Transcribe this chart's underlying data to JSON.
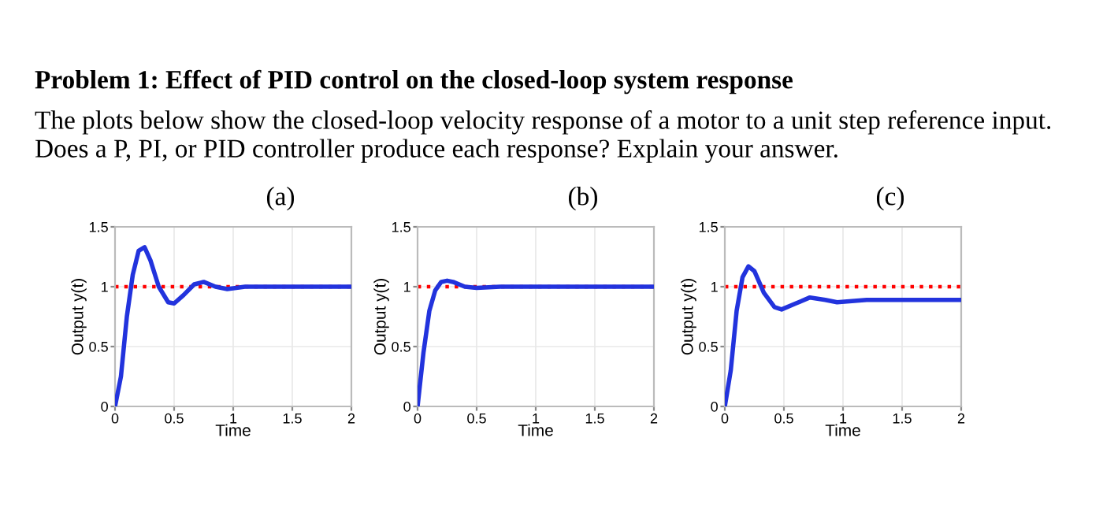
{
  "chart_data": [
    {
      "type": "line",
      "title": "(a)",
      "xlabel": "Time",
      "ylabel": "Output y(t)",
      "annotations": [
        "Problem 1: Effect of PID control on the closed-loop system response",
        "The plots below show the closed-loop velocity response of a motor to a unit step reference input. Does a P, PI, or PID controller produce each response? Explain your answer."
      ],
      "series": [
        {
          "color": "#2233dd",
          "x": [
            0,
            0.05,
            0.1,
            0.15,
            0.2,
            0.25,
            0.3,
            0.37,
            0.45,
            0.5,
            0.58,
            0.67,
            0.75,
            0.85,
            0.95,
            1.1,
            1.5,
            2
          ],
          "values": [
            0,
            0.25,
            0.75,
            1.1,
            1.3,
            1.33,
            1.22,
            1.0,
            0.87,
            0.86,
            0.93,
            1.02,
            1.04,
            1.0,
            0.98,
            1.0,
            1.0,
            1.0
          ]
        }
      ],
      "ref_lines": [
        {
          "axis": "y",
          "value": 1,
          "color": "#ff0000",
          "line_style": "dotted"
        }
      ],
      "xlim": [
        0,
        2
      ],
      "xticks": [
        0,
        0.5,
        1,
        1.5,
        2
      ],
      "ylim": [
        0,
        1.5
      ],
      "yticks": [
        0,
        0.5,
        1,
        1.5
      ],
      "grid": true
    },
    {
      "type": "line",
      "title": "(b)",
      "xlabel": "Time",
      "ylabel": "Output y(t)",
      "series": [
        {
          "color": "#2233dd",
          "x": [
            0,
            0.05,
            0.1,
            0.15,
            0.2,
            0.25,
            0.3,
            0.4,
            0.5,
            0.7,
            2
          ],
          "values": [
            0,
            0.45,
            0.8,
            0.97,
            1.04,
            1.05,
            1.04,
            1.0,
            0.99,
            1.0,
            1.0
          ]
        }
      ],
      "ref_lines": [
        {
          "axis": "y",
          "value": 1,
          "color": "#ff0000",
          "line_style": "dotted"
        }
      ],
      "xlim": [
        0,
        2
      ],
      "xticks": [
        0,
        0.5,
        1,
        1.5,
        2
      ],
      "ylim": [
        0,
        1.5
      ],
      "yticks": [
        0,
        0.5,
        1,
        1.5
      ],
      "grid": true
    },
    {
      "type": "line",
      "title": "(c)",
      "xlabel": "Time",
      "ylabel": "Output y(t)",
      "series": [
        {
          "color": "#2233dd",
          "x": [
            0,
            0.05,
            0.1,
            0.15,
            0.2,
            0.25,
            0.33,
            0.42,
            0.48,
            0.6,
            0.72,
            0.85,
            0.95,
            1.2,
            2
          ],
          "values": [
            0,
            0.3,
            0.8,
            1.08,
            1.17,
            1.13,
            0.95,
            0.83,
            0.81,
            0.86,
            0.91,
            0.89,
            0.87,
            0.89,
            0.89
          ]
        }
      ],
      "ref_lines": [
        {
          "axis": "y",
          "value": 1,
          "color": "#ff0000",
          "line_style": "dotted"
        }
      ],
      "xlim": [
        0,
        2
      ],
      "xticks": [
        0,
        0.5,
        1,
        1.5,
        2
      ],
      "ylim": [
        0,
        1.5
      ],
      "yticks": [
        0,
        0.5,
        1,
        1.5
      ],
      "grid": true
    }
  ]
}
